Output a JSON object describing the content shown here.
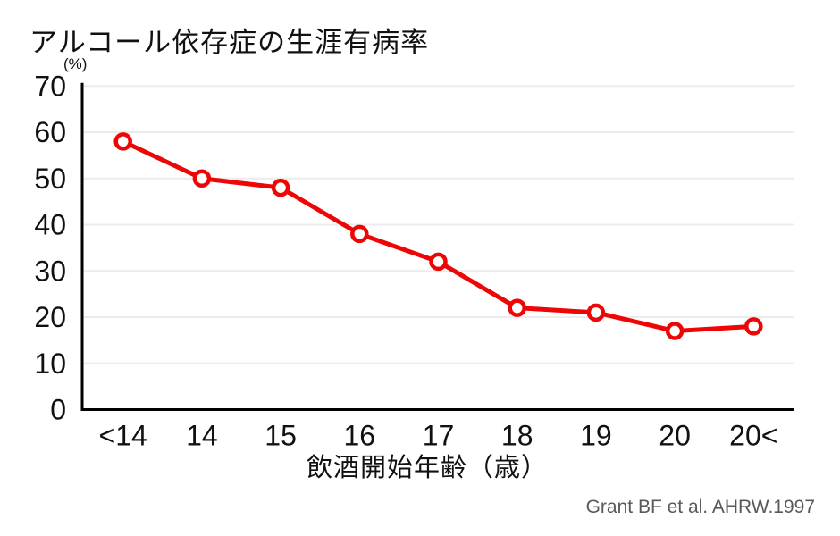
{
  "colors": {
    "line": "#ee0505",
    "marker_fill": "#ffffff",
    "grid": "#ececec",
    "axis": "#000000",
    "text": "#111111",
    "source_text": "#595959",
    "background": "#ffffff"
  },
  "chart_data": {
    "type": "line",
    "title": "アルコール依存症の生涯有病率",
    "categories": [
      "<14",
      "14",
      "15",
      "16",
      "17",
      "18",
      "19",
      "20",
      "20<"
    ],
    "values": [
      58,
      50,
      48,
      38,
      32,
      22,
      21,
      17,
      18
    ],
    "xlabel": "飲酒開始年齢（歳）",
    "ylabel": "(%)",
    "ylim": [
      0,
      70
    ],
    "ytick_step": 10,
    "yticks": [
      0,
      10,
      20,
      30,
      40,
      50,
      60,
      70
    ],
    "grid": true,
    "legend": false,
    "marker": "open-circle",
    "source": "Grant BF et al. AHRW.1997"
  }
}
